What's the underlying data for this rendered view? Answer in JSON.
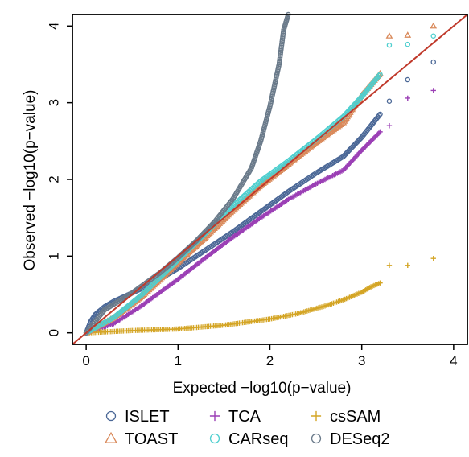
{
  "chart_data": {
    "type": "scatter",
    "title": "",
    "xlabel": "Expected −log10(p−value)",
    "ylabel": "Observed −log10(p−value)",
    "xlim": [
      -0.15,
      4.15
    ],
    "ylim": [
      -0.15,
      4.15
    ],
    "xticks": [
      0,
      1,
      2,
      3,
      4
    ],
    "yticks": [
      0,
      1,
      2,
      3,
      4
    ],
    "grid": false,
    "legend_position": "bottom",
    "reference_line": {
      "from": [
        -0.15,
        -0.15
      ],
      "to": [
        4.15,
        4.15
      ],
      "color": "#c0392b"
    },
    "series": [
      {
        "name": "ISLET",
        "marker": "circle",
        "color": "#4a6796",
        "curve": [
          [
            0,
            0
          ],
          [
            0.05,
            0.15
          ],
          [
            0.1,
            0.24
          ],
          [
            0.2,
            0.34
          ],
          [
            0.3,
            0.41
          ],
          [
            0.5,
            0.52
          ],
          [
            0.7,
            0.63
          ],
          [
            1.0,
            0.84
          ],
          [
            1.3,
            1.08
          ],
          [
            1.6,
            1.32
          ],
          [
            1.9,
            1.58
          ],
          [
            2.2,
            1.84
          ],
          [
            2.5,
            2.08
          ],
          [
            2.8,
            2.3
          ],
          [
            3.0,
            2.55
          ],
          [
            3.2,
            2.85
          ]
        ],
        "tail": [
          [
            3.3,
            3.02
          ],
          [
            3.5,
            3.3
          ],
          [
            3.78,
            3.53
          ]
        ]
      },
      {
        "name": "TCA",
        "marker": "plus",
        "color": "#9b3fb5",
        "curve": [
          [
            0,
            0
          ],
          [
            0.3,
            0.12
          ],
          [
            0.6,
            0.35
          ],
          [
            1.0,
            0.7
          ],
          [
            1.3,
            0.98
          ],
          [
            1.6,
            1.25
          ],
          [
            1.9,
            1.5
          ],
          [
            2.2,
            1.74
          ],
          [
            2.5,
            1.94
          ],
          [
            2.8,
            2.12
          ],
          [
            3.0,
            2.38
          ],
          [
            3.2,
            2.62
          ]
        ],
        "tail": [
          [
            3.3,
            2.7
          ],
          [
            3.5,
            3.06
          ],
          [
            3.78,
            3.16
          ]
        ]
      },
      {
        "name": "csSAM",
        "marker": "plus",
        "color": "#d4a525",
        "curve": [
          [
            0,
            0
          ],
          [
            0.5,
            0.03
          ],
          [
            1.0,
            0.05
          ],
          [
            1.5,
            0.1
          ],
          [
            2.0,
            0.18
          ],
          [
            2.3,
            0.25
          ],
          [
            2.6,
            0.35
          ],
          [
            2.8,
            0.43
          ],
          [
            3.0,
            0.53
          ],
          [
            3.1,
            0.6
          ],
          [
            3.2,
            0.65
          ]
        ],
        "tail": [
          [
            3.3,
            0.88
          ],
          [
            3.5,
            0.88
          ],
          [
            3.78,
            0.97
          ]
        ]
      },
      {
        "name": "TOAST",
        "marker": "triangle",
        "color": "#d9895a",
        "curve": [
          [
            0,
            0
          ],
          [
            0.3,
            0.2
          ],
          [
            0.6,
            0.47
          ],
          [
            1.0,
            0.92
          ],
          [
            1.3,
            1.25
          ],
          [
            1.6,
            1.6
          ],
          [
            1.9,
            1.92
          ],
          [
            2.2,
            2.2
          ],
          [
            2.5,
            2.48
          ],
          [
            2.8,
            2.74
          ],
          [
            3.0,
            3.1
          ],
          [
            3.2,
            3.38
          ]
        ],
        "tail": [
          [
            3.3,
            3.87
          ],
          [
            3.5,
            3.88
          ],
          [
            3.78,
            4.0
          ]
        ]
      },
      {
        "name": "CARseq",
        "marker": "circle",
        "color": "#4fcfcf",
        "curve": [
          [
            0,
            0
          ],
          [
            0.3,
            0.2
          ],
          [
            0.6,
            0.49
          ],
          [
            1.0,
            0.95
          ],
          [
            1.3,
            1.3
          ],
          [
            1.6,
            1.66
          ],
          [
            1.9,
            1.98
          ],
          [
            2.2,
            2.24
          ],
          [
            2.5,
            2.52
          ],
          [
            2.8,
            2.82
          ],
          [
            3.0,
            3.08
          ],
          [
            3.2,
            3.37
          ]
        ],
        "tail": [
          [
            3.3,
            3.75
          ],
          [
            3.5,
            3.76
          ],
          [
            3.78,
            3.87
          ]
        ]
      },
      {
        "name": "DESeq2",
        "marker": "circle",
        "color": "#6a7a8a",
        "curve": [
          [
            0,
            0
          ],
          [
            0.2,
            0.3
          ],
          [
            0.5,
            0.52
          ],
          [
            0.8,
            0.78
          ],
          [
            1.0,
            0.98
          ],
          [
            1.2,
            1.2
          ],
          [
            1.4,
            1.45
          ],
          [
            1.6,
            1.75
          ],
          [
            1.8,
            2.15
          ],
          [
            1.9,
            2.5
          ],
          [
            2.0,
            2.95
          ],
          [
            2.1,
            3.5
          ],
          [
            2.15,
            3.95
          ],
          [
            2.2,
            4.15
          ]
        ],
        "tail": []
      }
    ]
  }
}
